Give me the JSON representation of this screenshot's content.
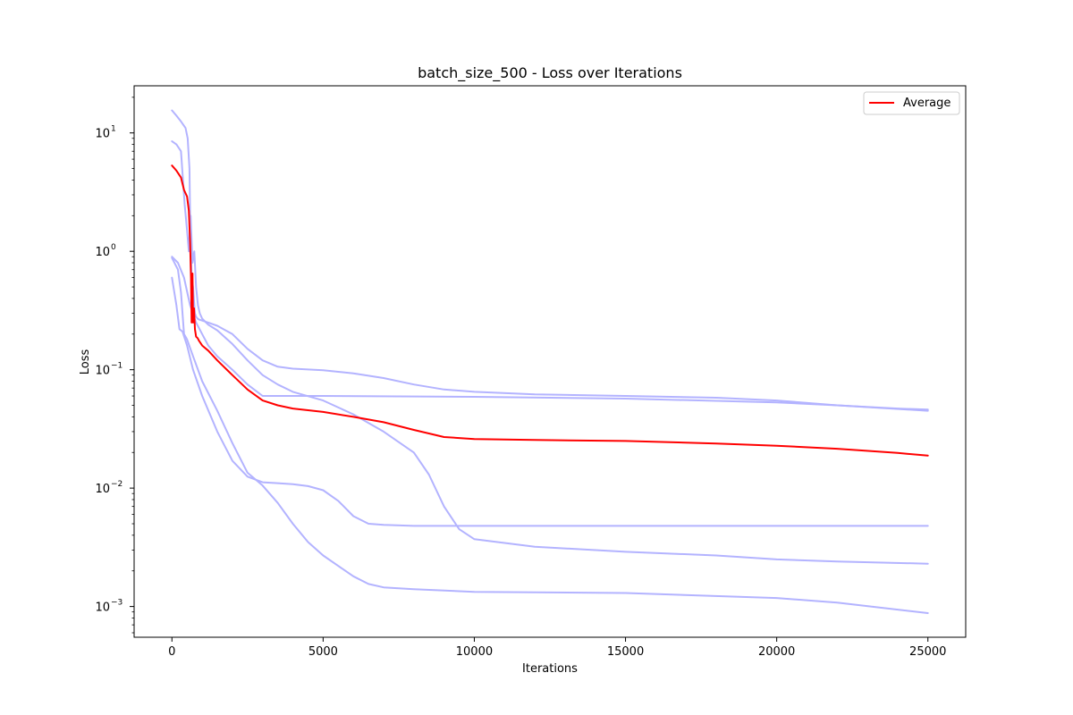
{
  "chart_data": {
    "type": "line",
    "title": "batch_size_500 - Loss over Iterations",
    "xlabel": "Iterations",
    "ylabel": "Loss",
    "xlim": [
      -1250,
      26250
    ],
    "ylim": [
      0.00055,
      25
    ],
    "yscale": "log",
    "xticks": [
      0,
      5000,
      10000,
      15000,
      20000,
      25000
    ],
    "xtick_labels": [
      "0",
      "5000",
      "10000",
      "15000",
      "20000",
      "25000"
    ],
    "yticks": [
      0.001,
      0.01,
      0.1,
      1,
      10
    ],
    "ytick_labels": [
      "10",
      "10",
      "10",
      "10",
      "10"
    ],
    "ytick_exponents": [
      "−3",
      "−2",
      "−1",
      "0",
      "1"
    ],
    "grid": false,
    "legend": {
      "placement": "top-right",
      "entries": [
        "Average"
      ]
    },
    "colors": {
      "runs": "#b3b3ff",
      "average": "#ff0000"
    },
    "series": [
      {
        "role": "run",
        "x": [
          0,
          150,
          300,
          450,
          520,
          580,
          600,
          650,
          700,
          760,
          800,
          850,
          900,
          1000,
          1200,
          1500,
          2000,
          2500,
          3000,
          3500,
          4000,
          5000,
          6000,
          7000,
          8000,
          9000,
          10000,
          12000,
          15000,
          18000,
          20000,
          22000,
          24000,
          25000
        ],
        "y": [
          15.5,
          14.0,
          12.5,
          11.0,
          9.0,
          5.0,
          2.0,
          0.6,
          0.5,
          0.3,
          0.28,
          0.27,
          0.265,
          0.26,
          0.25,
          0.235,
          0.2,
          0.15,
          0.12,
          0.106,
          0.102,
          0.099,
          0.093,
          0.085,
          0.075,
          0.068,
          0.065,
          0.062,
          0.06,
          0.058,
          0.055,
          0.05,
          0.047,
          0.046
        ]
      },
      {
        "role": "run",
        "x": [
          0,
          150,
          300,
          420,
          500,
          560,
          620,
          680,
          740,
          800,
          860,
          920,
          1000,
          1200,
          1500,
          2000,
          2500,
          3000,
          3500,
          4000,
          5000,
          6000,
          7000,
          8000,
          8500,
          9000,
          9500,
          10000,
          12000,
          15000,
          18000,
          20000,
          22000,
          25000
        ],
        "y": [
          8.5,
          8.0,
          7.0,
          2.5,
          1.5,
          1.0,
          2.0,
          0.8,
          1.0,
          0.5,
          0.35,
          0.3,
          0.27,
          0.24,
          0.215,
          0.165,
          0.12,
          0.09,
          0.075,
          0.065,
          0.055,
          0.042,
          0.03,
          0.02,
          0.013,
          0.007,
          0.0045,
          0.0037,
          0.0032,
          0.0029,
          0.0027,
          0.0025,
          0.0024,
          0.0023
        ]
      },
      {
        "role": "run",
        "x": [
          0,
          200,
          400,
          600,
          800,
          1000,
          1200,
          1500,
          2000,
          2500,
          3000,
          5000,
          10000,
          15000,
          20000,
          22000,
          25000
        ],
        "y": [
          0.9,
          0.8,
          0.6,
          0.35,
          0.25,
          0.2,
          0.16,
          0.13,
          0.1,
          0.075,
          0.06,
          0.06,
          0.059,
          0.057,
          0.053,
          0.05,
          0.045
        ]
      },
      {
        "role": "run",
        "x": [
          0,
          150,
          250,
          350,
          500,
          700,
          1000,
          1500,
          2000,
          2500,
          3000,
          3500,
          4000,
          4500,
          5000,
          5500,
          6000,
          6500,
          7000,
          8000,
          10000,
          15000,
          20000,
          25000
        ],
        "y": [
          0.6,
          0.35,
          0.22,
          0.21,
          0.16,
          0.1,
          0.06,
          0.03,
          0.017,
          0.0125,
          0.0112,
          0.011,
          0.0108,
          0.0104,
          0.0096,
          0.0078,
          0.0058,
          0.005,
          0.0049,
          0.0048,
          0.0048,
          0.0048,
          0.0048,
          0.0048
        ]
      },
      {
        "role": "run",
        "x": [
          0,
          200,
          300,
          400,
          500,
          700,
          1000,
          1500,
          2000,
          2500,
          3000,
          3500,
          4000,
          4500,
          5000,
          5500,
          6000,
          6500,
          7000,
          8000,
          10000,
          15000,
          20000,
          22000,
          25000
        ],
        "y": [
          0.88,
          0.7,
          0.45,
          0.2,
          0.18,
          0.13,
          0.08,
          0.045,
          0.024,
          0.0135,
          0.0105,
          0.0075,
          0.005,
          0.0035,
          0.0027,
          0.0022,
          0.0018,
          0.00155,
          0.00145,
          0.0014,
          0.00133,
          0.0013,
          0.00118,
          0.00108,
          0.00088
        ]
      },
      {
        "role": "average",
        "name": "Average",
        "x": [
          0,
          150,
          300,
          400,
          500,
          560,
          600,
          630,
          650,
          680,
          700,
          730,
          760,
          800,
          850,
          900,
          1000,
          1200,
          1500,
          2000,
          2500,
          3000,
          3500,
          4000,
          5000,
          6000,
          7000,
          8000,
          9000,
          10000,
          12000,
          15000,
          18000,
          20000,
          22000,
          24000,
          25000
        ],
        "y": [
          5.3,
          4.8,
          4.2,
          3.3,
          2.9,
          2.2,
          1.2,
          0.6,
          0.25,
          0.65,
          0.25,
          0.33,
          0.22,
          0.19,
          0.185,
          0.175,
          0.16,
          0.145,
          0.12,
          0.09,
          0.068,
          0.055,
          0.05,
          0.047,
          0.044,
          0.04,
          0.036,
          0.031,
          0.027,
          0.026,
          0.0255,
          0.025,
          0.0238,
          0.0228,
          0.0215,
          0.0198,
          0.0188
        ]
      }
    ]
  }
}
